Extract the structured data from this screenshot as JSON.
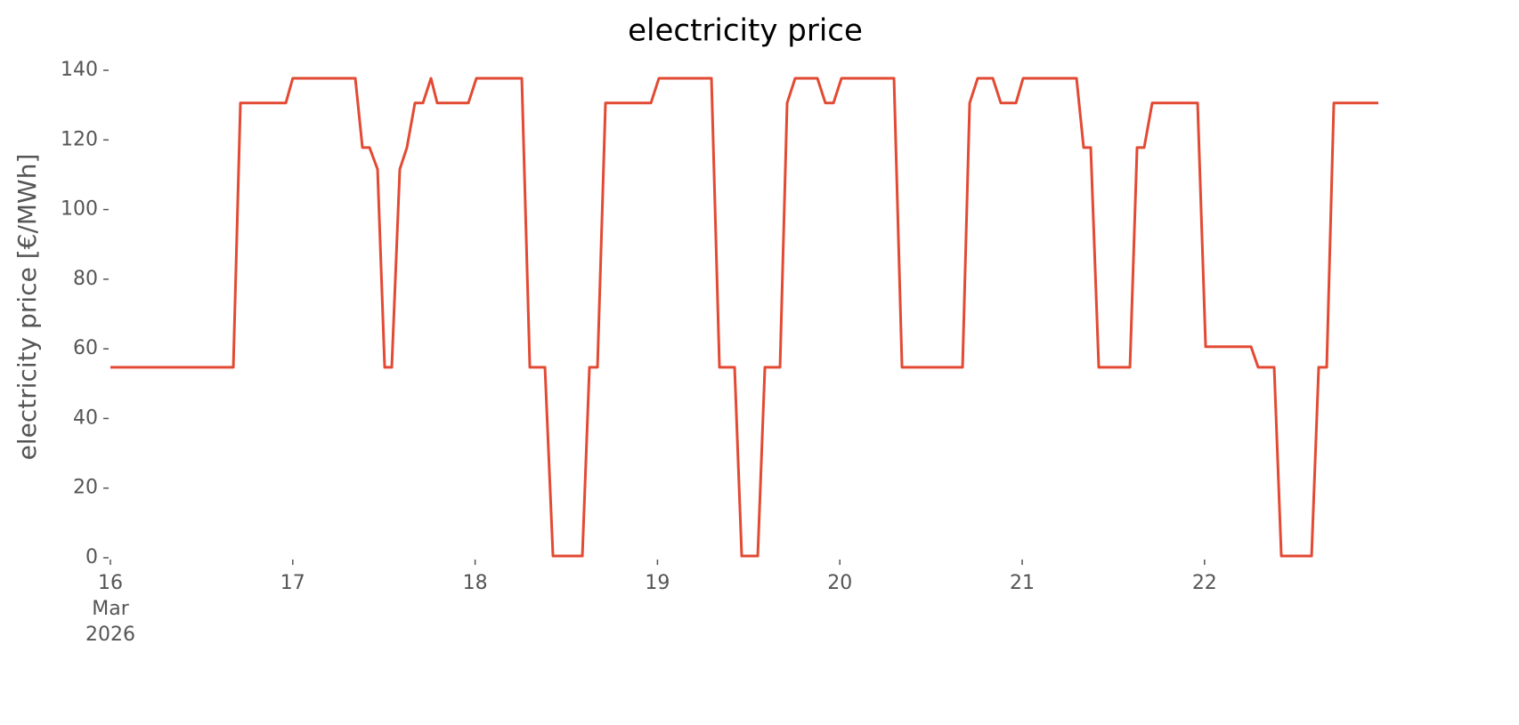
{
  "chart_data": {
    "type": "line",
    "title": "electricity price",
    "ylabel": "electricity price [€/MWh]",
    "series": [
      {
        "color": "#E24A33",
        "x": [
          16.0,
          16.674,
          16.713,
          16.962,
          17.0,
          17.343,
          17.382,
          17.421,
          17.465,
          17.504,
          17.543,
          17.587,
          17.626,
          17.67,
          17.714,
          17.758,
          17.792,
          17.963,
          18.007,
          18.256,
          18.3,
          18.383,
          18.427,
          18.588,
          18.627,
          18.671,
          18.715,
          18.964,
          19.008,
          19.296,
          19.34,
          19.423,
          19.462,
          19.55,
          19.589,
          19.672,
          19.711,
          19.755,
          19.877,
          19.921,
          19.965,
          20.009,
          20.297,
          20.341,
          20.673,
          20.712,
          20.756,
          20.839,
          20.883,
          20.966,
          21.005,
          21.298,
          21.337,
          21.376,
          21.42,
          21.591,
          21.63,
          21.669,
          21.713,
          21.962,
          22.006,
          22.255,
          22.294,
          22.382,
          22.421,
          22.587,
          22.626,
          22.67,
          22.709,
          22.953
        ],
        "values": [
          54.7,
          54.7,
          130.6,
          130.6,
          137.7,
          137.7,
          117.8,
          117.8,
          111.6,
          54.7,
          54.7,
          111.6,
          117.8,
          130.6,
          130.6,
          137.7,
          130.6,
          130.6,
          137.7,
          137.7,
          54.7,
          54.7,
          0.5,
          0.5,
          54.7,
          54.7,
          130.6,
          130.6,
          137.7,
          137.7,
          54.7,
          54.7,
          0.5,
          0.5,
          54.7,
          54.7,
          130.6,
          137.7,
          137.7,
          130.6,
          130.6,
          137.7,
          137.7,
          54.7,
          54.7,
          130.6,
          137.7,
          137.7,
          130.6,
          130.6,
          137.7,
          137.7,
          117.8,
          117.8,
          54.7,
          54.7,
          117.8,
          117.8,
          130.6,
          130.6,
          60.6,
          60.6,
          54.7,
          54.7,
          0.5,
          0.5,
          54.7,
          54.7,
          130.6,
          130.6
        ]
      }
    ],
    "xlim": [
      16,
      22.953
    ],
    "xticks": [
      {
        "value": 16,
        "label": "16\nMar\n2026"
      },
      17,
      18,
      19,
      20,
      21,
      22
    ],
    "ylim": [
      0,
      140
    ],
    "yticks": [
      0,
      20,
      40,
      60,
      80,
      100,
      120,
      140
    ]
  }
}
